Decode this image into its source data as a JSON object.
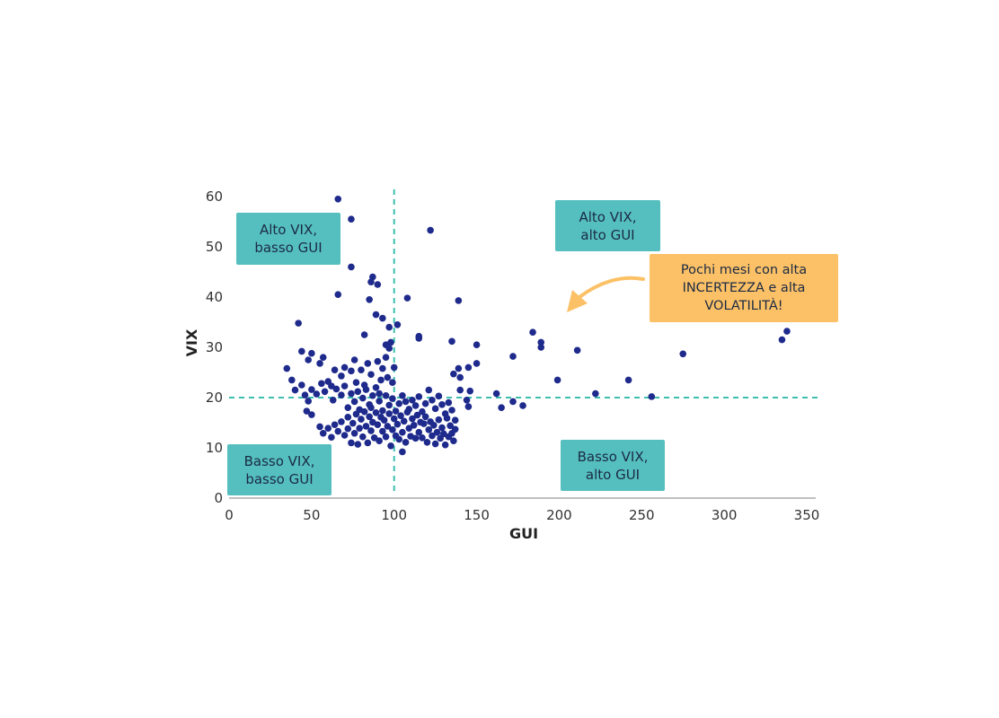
{
  "chart_data": {
    "type": "scatter",
    "xlabel": "GUI",
    "ylabel": "VIX",
    "xlim": [
      0,
      350
    ],
    "ylim": [
      0,
      60
    ],
    "x_ticks": [
      0,
      50,
      100,
      150,
      200,
      250,
      300,
      350
    ],
    "y_ticks": [
      0,
      10,
      20,
      30,
      40,
      50,
      60
    ],
    "reference_lines": {
      "x": 100,
      "y": 20,
      "style": "dashed",
      "color": "#3dbfae"
    },
    "point_color": "#1e2a8c",
    "grid": false,
    "points": [
      [
        66,
        59.5
      ],
      [
        74,
        55.5
      ],
      [
        122,
        53.3
      ],
      [
        74,
        46
      ],
      [
        66,
        40.5
      ],
      [
        90,
        42.5
      ],
      [
        87,
        44
      ],
      [
        86,
        43
      ],
      [
        85,
        39.5
      ],
      [
        108,
        39.8
      ],
      [
        139,
        39.3
      ],
      [
        42,
        34.8
      ],
      [
        89,
        36.5
      ],
      [
        93,
        35.8
      ],
      [
        97,
        34
      ],
      [
        102,
        34.5
      ],
      [
        115,
        32.2
      ],
      [
        115,
        31.8
      ],
      [
        82,
        32.5
      ],
      [
        95,
        30.5
      ],
      [
        97,
        29.8
      ],
      [
        98,
        31
      ],
      [
        135,
        31.2
      ],
      [
        150,
        30.5
      ],
      [
        184,
        33
      ],
      [
        189,
        31
      ],
      [
        189,
        30
      ],
      [
        211,
        29.4
      ],
      [
        335,
        31.5
      ],
      [
        338,
        33.2
      ],
      [
        275,
        28.7
      ],
      [
        44,
        29.2
      ],
      [
        50,
        28.8
      ],
      [
        57,
        28
      ],
      [
        48,
        27.5
      ],
      [
        55,
        26.8
      ],
      [
        64,
        25.5
      ],
      [
        70,
        26
      ],
      [
        76,
        27.5
      ],
      [
        84,
        26.8
      ],
      [
        90,
        27.2
      ],
      [
        95,
        28
      ],
      [
        93,
        25.8
      ],
      [
        100,
        26
      ],
      [
        68,
        24.3
      ],
      [
        74,
        25.3
      ],
      [
        80,
        25.5
      ],
      [
        86,
        24.6
      ],
      [
        92,
        23.5
      ],
      [
        96,
        24
      ],
      [
        99,
        23
      ],
      [
        77,
        23
      ],
      [
        82,
        22.5
      ],
      [
        145,
        26
      ],
      [
        150,
        26.8
      ],
      [
        139,
        25.8
      ],
      [
        140,
        24
      ],
      [
        136,
        24.7
      ],
      [
        140,
        21.5
      ],
      [
        146,
        21.3
      ],
      [
        144,
        19.5
      ],
      [
        145,
        18.2
      ],
      [
        172,
        28.2
      ],
      [
        199,
        23.5
      ],
      [
        242,
        23.5
      ],
      [
        222,
        20.8
      ],
      [
        256,
        20.2
      ],
      [
        35,
        25.8
      ],
      [
        38,
        23.5
      ],
      [
        40,
        21.5
      ],
      [
        44,
        22.5
      ],
      [
        46,
        20.5
      ],
      [
        48,
        19.3
      ],
      [
        50,
        21.6
      ],
      [
        53,
        20.7
      ],
      [
        56,
        22.8
      ],
      [
        58,
        21.2
      ],
      [
        60,
        23.2
      ],
      [
        62,
        22.3
      ],
      [
        63,
        19.5
      ],
      [
        65,
        21.7
      ],
      [
        68,
        20.5
      ],
      [
        70,
        22.3
      ],
      [
        72,
        18
      ],
      [
        74,
        20.8
      ],
      [
        76,
        19.2
      ],
      [
        78,
        21.2
      ],
      [
        79,
        17.6
      ],
      [
        81,
        19.9
      ],
      [
        83,
        21.6
      ],
      [
        85,
        18.6
      ],
      [
        87,
        20.4
      ],
      [
        89,
        22
      ],
      [
        91,
        19.3
      ],
      [
        93,
        17.4
      ],
      [
        95,
        20.4
      ],
      [
        97,
        18.5
      ],
      [
        99,
        19.8
      ],
      [
        101,
        17.3
      ],
      [
        103,
        18.8
      ],
      [
        105,
        20.4
      ],
      [
        107,
        19.2
      ],
      [
        109,
        17.7
      ],
      [
        111,
        19.5
      ],
      [
        113,
        18.4
      ],
      [
        115,
        20.2
      ],
      [
        117,
        17.2
      ],
      [
        119,
        18.8
      ],
      [
        121,
        21.5
      ],
      [
        123,
        19.5
      ],
      [
        125,
        17.8
      ],
      [
        127,
        20.3
      ],
      [
        129,
        18.6
      ],
      [
        131,
        16.8
      ],
      [
        133,
        19
      ],
      [
        135,
        17.5
      ],
      [
        137,
        15.5
      ],
      [
        162,
        20.8
      ],
      [
        165,
        18
      ],
      [
        172,
        19.2
      ],
      [
        178,
        18.4
      ],
      [
        47,
        17.3
      ],
      [
        50,
        16.6
      ],
      [
        55,
        14.2
      ],
      [
        57,
        12.9
      ],
      [
        60,
        13.9
      ],
      [
        62,
        12.1
      ],
      [
        64,
        14.6
      ],
      [
        66,
        13.3
      ],
      [
        68,
        15.2
      ],
      [
        70,
        12.5
      ],
      [
        72,
        16.1
      ],
      [
        72,
        13.8
      ],
      [
        74,
        11
      ],
      [
        75,
        14.9
      ],
      [
        76,
        12.9
      ],
      [
        77,
        16.7
      ],
      [
        78,
        10.7
      ],
      [
        79,
        13.9
      ],
      [
        80,
        15.7
      ],
      [
        81,
        12.2
      ],
      [
        82,
        17.2
      ],
      [
        83,
        14.3
      ],
      [
        84,
        11
      ],
      [
        85,
        16.2
      ],
      [
        86,
        13.4
      ],
      [
        87,
        15.1
      ],
      [
        88,
        12
      ],
      [
        89,
        17
      ],
      [
        90,
        14.6
      ],
      [
        91,
        11.4
      ],
      [
        92,
        16.1
      ],
      [
        93,
        13.3
      ],
      [
        94,
        15.5
      ],
      [
        95,
        12.2
      ],
      [
        96,
        14.3
      ],
      [
        97,
        16.8
      ],
      [
        98,
        10.4
      ],
      [
        99,
        13.6
      ],
      [
        100,
        15.8
      ],
      [
        101,
        12.4
      ],
      [
        102,
        14.7
      ],
      [
        103,
        11.7
      ],
      [
        104,
        16.4
      ],
      [
        105,
        13.1
      ],
      [
        106,
        15.3
      ],
      [
        107,
        11.1
      ],
      [
        108,
        17.1
      ],
      [
        109,
        13.9
      ],
      [
        110,
        12.3
      ],
      [
        111,
        15.8
      ],
      [
        112,
        14.5
      ],
      [
        113,
        11.9
      ],
      [
        114,
        16.5
      ],
      [
        115,
        13.1
      ],
      [
        116,
        15.1
      ],
      [
        117,
        12
      ],
      [
        118,
        14.8
      ],
      [
        119,
        16.2
      ],
      [
        120,
        11.1
      ],
      [
        121,
        13.6
      ],
      [
        122,
        15.2
      ],
      [
        123,
        12.4
      ],
      [
        124,
        14.5
      ],
      [
        125,
        10.8
      ],
      [
        126,
        13.1
      ],
      [
        127,
        15.6
      ],
      [
        128,
        11.9
      ],
      [
        129,
        14
      ],
      [
        130,
        12.8
      ],
      [
        131,
        10.6
      ],
      [
        132,
        15.9
      ],
      [
        133,
        12.2
      ],
      [
        134,
        14.4
      ],
      [
        135,
        12.9
      ],
      [
        136,
        11.4
      ],
      [
        137,
        13.7
      ],
      [
        105,
        9.2
      ],
      [
        86,
        18
      ],
      [
        91,
        20.8
      ]
    ]
  },
  "quadrants": {
    "top_left": {
      "line1": "Alto VIX,",
      "line2": "basso GUI"
    },
    "top_right": {
      "line1": "Alto VIX,",
      "line2": "alto GUI"
    },
    "bottom_left": {
      "line1": "Basso VIX,",
      "line2": "basso GUI"
    },
    "bottom_right": {
      "line1": "Basso VIX,",
      "line2": "alto GUI"
    }
  },
  "callout": {
    "line1": "Pochi mesi con alta",
    "line2": "INCERTEZZA e alta",
    "line3": "VOLATILITÀ!"
  },
  "colors": {
    "quadrant_box": "#55bfc0",
    "callout_box": "#fcc166",
    "arrow": "#fcc166",
    "points": "#1e2a8c",
    "reference_line": "#3dbfae"
  }
}
